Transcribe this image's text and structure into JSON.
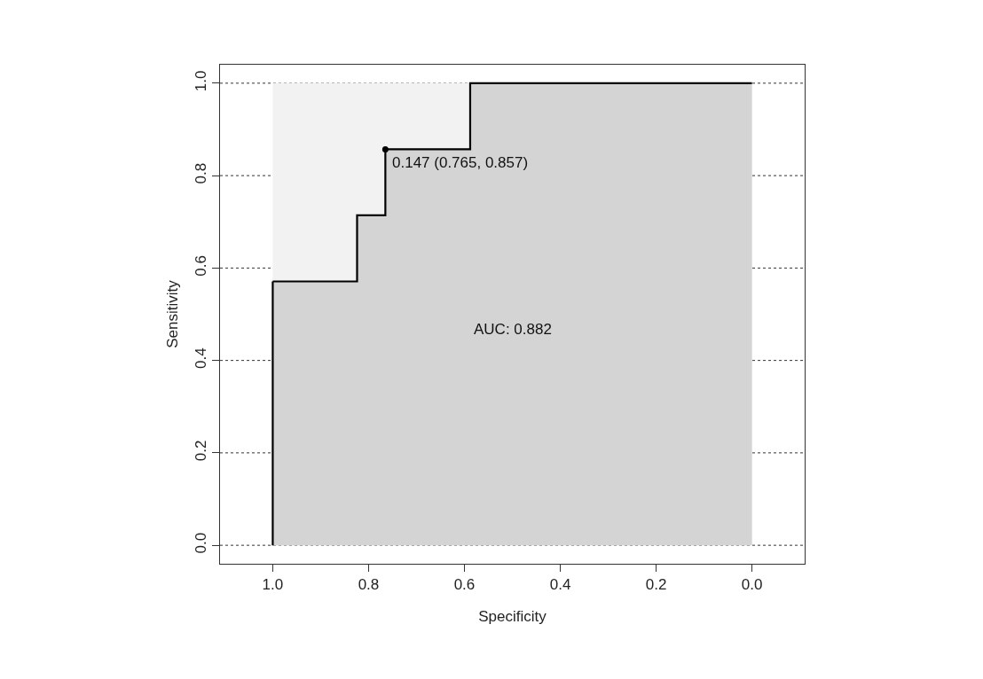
{
  "chart_data": {
    "type": "step",
    "xlabel": "Specificity",
    "ylabel": "Sensitivity",
    "series": [
      {
        "type": "area",
        "color": "#f2f2f2",
        "x": [
          1.0,
          0.0
        ],
        "values": [
          1.0,
          1.0
        ]
      },
      {
        "color": "#000000",
        "x": [
          1.0,
          0.824,
          0.765,
          0.588,
          0.0
        ],
        "values": [
          0.571,
          0.714,
          0.857,
          1.0,
          1.0
        ]
      },
      {
        "type": "line",
        "color": "#000000",
        "x": [
          1.0,
          1.0
        ],
        "values": [
          0.0,
          0.571
        ]
      },
      {
        "type": "scatter",
        "color": "#000000",
        "marker": "circle",
        "x": [
          0.765
        ],
        "values": [
          0.857
        ]
      }
    ],
    "xlim": [
      1.11,
      -0.11
    ],
    "ylim": [
      -0.04,
      1.04
    ],
    "xticks": [
      {
        "value": 1.0,
        "label": "1.0"
      },
      {
        "value": 0.8,
        "label": "0.8"
      },
      {
        "value": 0.6,
        "label": "0.6"
      },
      {
        "value": 0.4,
        "label": "0.4"
      },
      {
        "value": 0.2,
        "label": "0.2"
      },
      {
        "value": 0.0,
        "label": "0.0"
      }
    ],
    "yticks": [
      {
        "value": 0.0,
        "label": "0.0"
      },
      {
        "value": 0.2,
        "label": "0.2"
      },
      {
        "value": 0.4,
        "label": "0.4"
      },
      {
        "value": 0.6,
        "label": "0.6"
      },
      {
        "value": 0.8,
        "label": "0.8"
      },
      {
        "value": 1.0,
        "label": "1.0"
      }
    ],
    "grid": "y",
    "annotations": [
      {
        "text": "0.147 (0.765, 0.857)",
        "x": 0.765,
        "y": 0.857
      },
      "AUC: 0.882"
    ]
  }
}
